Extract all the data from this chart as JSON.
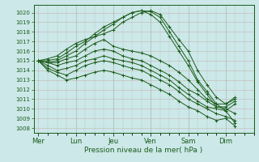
{
  "xlabel": "Pression niveau de la mer( hPa )",
  "ylim": [
    1007.5,
    1020.8
  ],
  "yticks": [
    1008,
    1009,
    1010,
    1011,
    1012,
    1013,
    1014,
    1015,
    1016,
    1017,
    1018,
    1019,
    1020
  ],
  "bg_color": "#cce8e8",
  "grid_color_v": "#b8c8c8",
  "grid_color_h": "#c8b4b4",
  "line_color": "#1a5c1a",
  "day_labels": [
    "Mer",
    "Lun",
    "Jeu",
    "Ven",
    "Sam",
    "Dim"
  ],
  "day_x": [
    0,
    8,
    16,
    24,
    32,
    40
  ],
  "xlim": [
    -1,
    44
  ],
  "series": [
    [
      0,
      1015.0,
      2,
      1015.2,
      4,
      1015.5,
      6,
      1016.2,
      8,
      1016.8,
      10,
      1017.2,
      12,
      1017.5,
      14,
      1017.8,
      16,
      1018.2,
      18,
      1019.0,
      20,
      1019.5,
      22,
      1020.0,
      24,
      1020.2,
      26,
      1019.8,
      28,
      1018.5,
      30,
      1017.2,
      32,
      1016.0,
      34,
      1014.0,
      36,
      1012.5,
      38,
      1011.2,
      40,
      1010.5,
      42,
      1011.0
    ],
    [
      0,
      1015.0,
      2,
      1015.0,
      4,
      1015.2,
      6,
      1015.8,
      8,
      1016.5,
      10,
      1017.0,
      12,
      1017.8,
      14,
      1018.5,
      16,
      1019.0,
      18,
      1019.5,
      20,
      1020.0,
      22,
      1020.2,
      24,
      1020.1,
      26,
      1019.5,
      28,
      1018.0,
      30,
      1016.5,
      32,
      1015.0,
      34,
      1013.0,
      36,
      1011.8,
      38,
      1010.5,
      40,
      1009.8,
      42,
      1008.5
    ],
    [
      0,
      1015.0,
      2,
      1014.8,
      4,
      1015.0,
      6,
      1015.5,
      8,
      1016.0,
      10,
      1016.8,
      12,
      1017.5,
      14,
      1018.2,
      16,
      1018.8,
      18,
      1019.5,
      20,
      1020.0,
      22,
      1020.2,
      24,
      1019.8,
      26,
      1019.0,
      28,
      1017.5,
      30,
      1016.0,
      32,
      1014.5,
      34,
      1012.8,
      36,
      1011.5,
      38,
      1010.2,
      40,
      1010.2,
      42,
      1010.8
    ],
    [
      0,
      1015.0,
      2,
      1014.8,
      4,
      1014.8,
      6,
      1015.2,
      8,
      1015.5,
      10,
      1016.2,
      12,
      1016.8,
      14,
      1017.2,
      16,
      1016.5,
      18,
      1016.2,
      20,
      1016.0,
      22,
      1015.8,
      24,
      1015.5,
      26,
      1015.0,
      28,
      1014.5,
      30,
      1013.8,
      32,
      1013.0,
      34,
      1012.0,
      36,
      1011.0,
      38,
      1010.5,
      40,
      1010.5,
      42,
      1011.2
    ],
    [
      0,
      1015.0,
      2,
      1014.8,
      4,
      1014.5,
      6,
      1014.8,
      8,
      1015.0,
      10,
      1015.5,
      12,
      1016.0,
      14,
      1016.2,
      16,
      1016.0,
      18,
      1015.5,
      20,
      1015.2,
      22,
      1015.0,
      24,
      1014.5,
      26,
      1014.0,
      28,
      1013.5,
      30,
      1012.8,
      32,
      1012.0,
      34,
      1011.5,
      36,
      1010.8,
      38,
      1010.2,
      40,
      1010.0,
      42,
      1009.5
    ],
    [
      0,
      1015.0,
      2,
      1014.5,
      4,
      1014.0,
      6,
      1014.2,
      8,
      1014.5,
      10,
      1015.0,
      12,
      1015.2,
      14,
      1015.5,
      16,
      1015.2,
      18,
      1015.0,
      20,
      1014.8,
      22,
      1014.5,
      24,
      1014.0,
      26,
      1013.5,
      28,
      1013.0,
      30,
      1012.2,
      32,
      1011.5,
      34,
      1010.8,
      36,
      1010.2,
      38,
      1010.0,
      40,
      1009.8,
      42,
      1010.5
    ],
    [
      0,
      1015.0,
      2,
      1014.2,
      4,
      1013.8,
      6,
      1013.5,
      8,
      1014.0,
      10,
      1014.5,
      12,
      1014.8,
      14,
      1015.0,
      16,
      1014.8,
      18,
      1014.5,
      20,
      1014.2,
      22,
      1014.0,
      24,
      1013.5,
      26,
      1013.0,
      28,
      1012.5,
      30,
      1011.8,
      32,
      1011.0,
      34,
      1010.5,
      36,
      1010.0,
      38,
      1009.5,
      40,
      1009.2,
      42,
      1008.8
    ],
    [
      0,
      1015.0,
      2,
      1014.0,
      4,
      1013.5,
      6,
      1013.0,
      8,
      1013.2,
      10,
      1013.5,
      12,
      1013.8,
      14,
      1014.0,
      16,
      1013.8,
      18,
      1013.5,
      20,
      1013.2,
      22,
      1013.0,
      24,
      1012.5,
      26,
      1012.0,
      28,
      1011.5,
      30,
      1010.8,
      32,
      1010.2,
      34,
      1009.8,
      36,
      1009.2,
      38,
      1008.8,
      40,
      1009.0,
      42,
      1008.2
    ]
  ]
}
